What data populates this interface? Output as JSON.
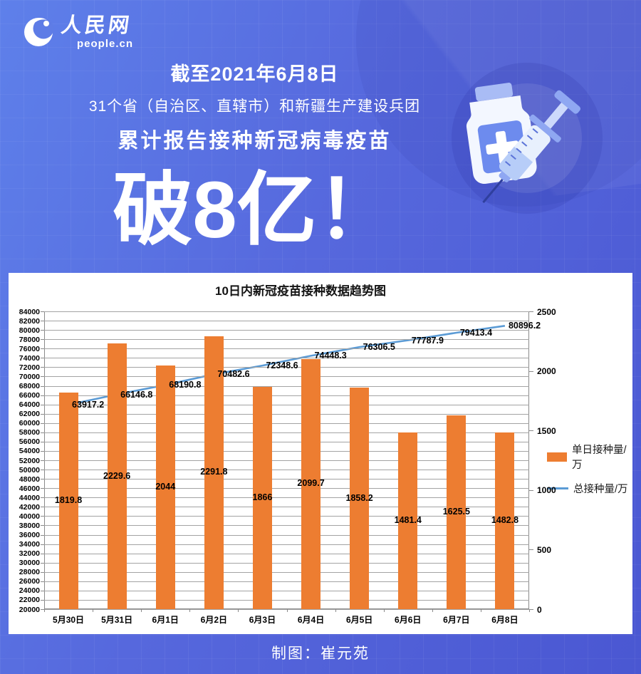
{
  "colors": {
    "bg_left": "#5E80EA",
    "bg_right": "#4A57D2",
    "panel": "#FFFFFF",
    "bar": "#ED7D31",
    "line": "#5B9BD5",
    "text_light": "#FFFFFF",
    "text_dark": "#000000"
  },
  "header": {
    "logo_cn": "人民网",
    "logo_en": "people.cn",
    "date_line": "截至2021年6月8日",
    "scope_line": "31个省（自治区、直辖市）和新疆生产建设兵团",
    "action_line": "累计报告接种新冠病毒疫苗",
    "headline": "破8亿！"
  },
  "illustration_icon": "vaccine-vial-and-syringe-icon",
  "chart_data": {
    "type": "bar",
    "combo": "bar+line",
    "title": "10日内新冠疫苗接种数据趋势图",
    "categories": [
      "5月30日",
      "5月31日",
      "6月1日",
      "6月2日",
      "6月3日",
      "6月4日",
      "6月5日",
      "6月6日",
      "6月7日",
      "6月8日"
    ],
    "series": [
      {
        "name": "单日接种量/万",
        "type": "bar",
        "axis": "right",
        "color": "#ED7D31",
        "values": [
          1819.8,
          2229.6,
          2044,
          2291.8,
          1866,
          2099.7,
          1858.2,
          1481.4,
          1625.5,
          1482.8
        ],
        "labels": [
          "1819.8",
          "2229.6",
          "2044",
          "2291.8",
          "1866",
          "2099.7",
          "1858.2",
          "1481.4",
          "1625.5",
          "1482.8"
        ]
      },
      {
        "name": "总接种量/万",
        "type": "line",
        "axis": "left",
        "color": "#5B9BD5",
        "values": [
          63917.2,
          66146.8,
          68190.8,
          70482.6,
          72348.6,
          74448.3,
          76306.5,
          77787.9,
          79413.4,
          80896.2
        ],
        "labels": [
          "63917.2",
          "66146.8",
          "68190.8",
          "70482.6",
          "72348.6",
          "74448.3",
          "76306.5",
          "77787.9",
          "79413.4",
          "80896.2"
        ]
      }
    ],
    "left_axis": {
      "min": 20000,
      "max": 84000,
      "step": 2000
    },
    "right_axis": {
      "min": 0,
      "max": 2500,
      "step": 500
    },
    "grid": "horizontal",
    "legend_position": "right"
  },
  "footer": {
    "credit": "制图：崔元苑"
  }
}
